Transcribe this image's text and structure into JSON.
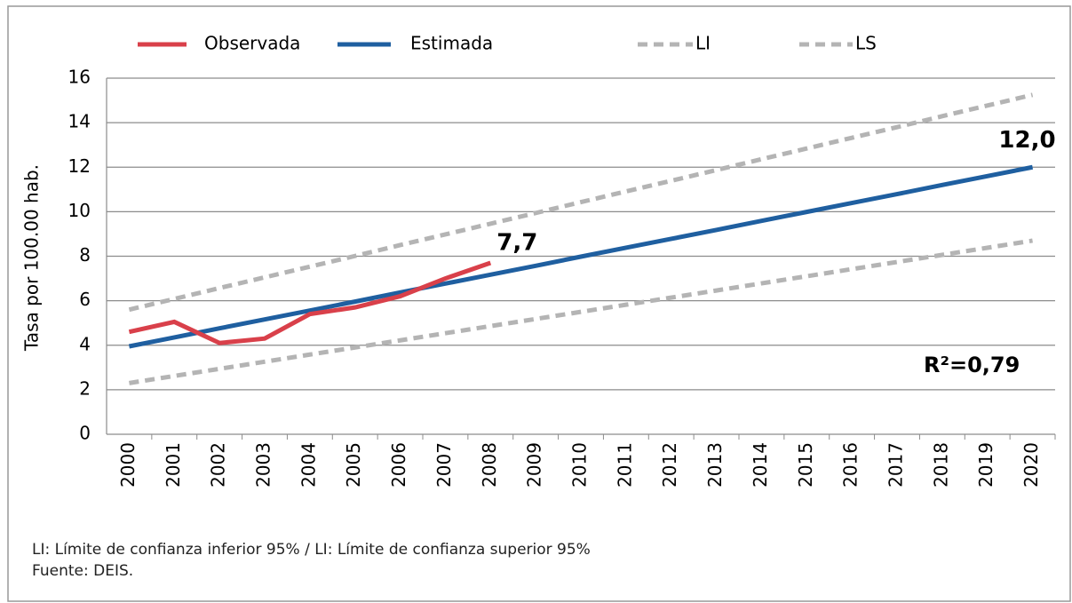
{
  "chart_data": {
    "type": "line",
    "y_label": "Tasa por 100.00 hab.",
    "categories": [
      "2000",
      "2001",
      "2002",
      "2003",
      "2004",
      "2005",
      "2006",
      "2007",
      "2008",
      "2009",
      "2010",
      "2011",
      "2012",
      "2013",
      "2014",
      "2015",
      "2016",
      "2017",
      "2018",
      "2019",
      "2020"
    ],
    "series": [
      {
        "name": "Observada",
        "color": "#d9404a",
        "dashed": false,
        "values": [
          4.6,
          5.05,
          4.1,
          4.3,
          5.4,
          5.7,
          6.2,
          7.0,
          7.7,
          null,
          null,
          null,
          null,
          null,
          null,
          null,
          null,
          null,
          null,
          null,
          null
        ],
        "value_labels": [
          null,
          null,
          null,
          null,
          null,
          null,
          null,
          null,
          "7,7",
          null,
          null,
          null,
          null,
          null,
          null,
          null,
          null,
          null,
          null,
          null,
          null
        ]
      },
      {
        "name": "Estimada",
        "color": "#1f5fa0",
        "dashed": false,
        "values": [
          3.95,
          4.35,
          4.76,
          5.16,
          5.56,
          5.96,
          6.37,
          6.77,
          7.17,
          7.57,
          7.98,
          8.38,
          8.78,
          9.18,
          9.59,
          9.99,
          10.39,
          10.79,
          11.2,
          11.6,
          12.0
        ],
        "value_labels": [
          null,
          null,
          null,
          null,
          null,
          null,
          null,
          null,
          null,
          null,
          null,
          null,
          null,
          null,
          null,
          null,
          null,
          null,
          null,
          null,
          "12,0"
        ]
      },
      {
        "name": "LI",
        "color": "#b4b4b4",
        "dashed": true,
        "values": [
          2.3,
          2.62,
          2.94,
          3.26,
          3.58,
          3.9,
          4.22,
          4.54,
          4.86,
          5.18,
          5.5,
          5.82,
          6.14,
          6.46,
          6.78,
          7.1,
          7.42,
          7.74,
          8.06,
          8.38,
          8.7
        ]
      },
      {
        "name": "LS",
        "color": "#b4b4b4",
        "dashed": true,
        "values": [
          5.6,
          6.08,
          6.57,
          7.05,
          7.53,
          8.01,
          8.5,
          8.98,
          9.46,
          9.94,
          10.43,
          10.91,
          11.39,
          11.87,
          12.36,
          12.84,
          13.32,
          13.8,
          14.29,
          14.77,
          15.25
        ]
      }
    ],
    "ylim": [
      0,
      16
    ],
    "yticks": [
      0,
      2,
      4,
      6,
      8,
      10,
      12,
      14,
      16
    ],
    "grid": true,
    "annotation": "R²=0,79",
    "notes": [
      "LI: Límite de confianza inferior 95% / LI: Límite de confianza superior 95%",
      "Fuente: DEIS."
    ]
  }
}
